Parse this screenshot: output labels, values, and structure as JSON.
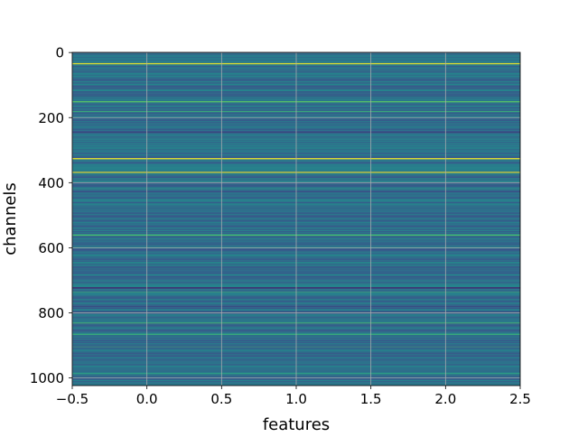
{
  "chart_data": {
    "type": "heatmap",
    "title": "",
    "xlabel": "features",
    "ylabel": "channels",
    "xlim": [
      -0.5,
      2.5
    ],
    "ylim": [
      1023.5,
      -0.5
    ],
    "x_ticks": [
      -0.5,
      0.0,
      0.5,
      1.0,
      1.5,
      2.0,
      2.5
    ],
    "x_tick_labels": [
      "−0.5",
      "0.0",
      "0.5",
      "1.0",
      "1.5",
      "2.0",
      "2.5"
    ],
    "y_ticks": [
      0,
      200,
      400,
      600,
      800,
      1000
    ],
    "y_tick_labels": [
      "0",
      "200",
      "400",
      "600",
      "800",
      "1000"
    ],
    "grid": true,
    "colormap": "viridis",
    "n_rows": 1024,
    "n_cols": 3,
    "base_color": "#2a788e",
    "notable_rows": [
      {
        "row": 33,
        "level": 0.95
      },
      {
        "row": 150,
        "level": 0.72
      },
      {
        "row": 180,
        "level": 0.6
      },
      {
        "row": 325,
        "level": 0.98
      },
      {
        "row": 338,
        "level": 0.3
      },
      {
        "row": 367,
        "level": 0.92
      },
      {
        "row": 402,
        "level": 0.3
      },
      {
        "row": 445,
        "level": 0.25
      },
      {
        "row": 560,
        "level": 0.68
      },
      {
        "row": 722,
        "level": 0.12
      },
      {
        "row": 830,
        "level": 0.62
      },
      {
        "row": 865,
        "level": 0.6
      },
      {
        "row": 985,
        "level": 0.55
      }
    ]
  }
}
